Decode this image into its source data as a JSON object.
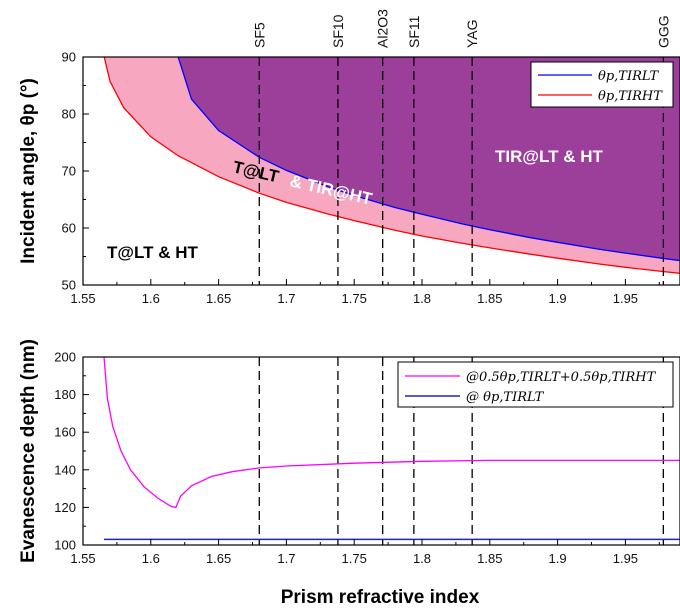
{
  "chart_data": [
    {
      "type": "area",
      "xlabel": "",
      "ylabel": "Incident angle, θp (°)",
      "xlim": [
        1.55,
        2.0
      ],
      "ylim": [
        50,
        90
      ],
      "xticks": [
        "1.55",
        "1.6",
        "1.65",
        "1.7",
        "1.75",
        "1.8",
        "1.85",
        "1.9",
        "1.95",
        "2"
      ],
      "yticks": [
        "50",
        "60",
        "70",
        "80",
        "90"
      ],
      "series": [
        {
          "name": "θp,TIRLT",
          "color": "#0000ff",
          "x": [
            1.6202,
            1.63,
            1.65,
            1.68,
            1.7,
            1.73,
            1.75,
            1.78,
            1.8,
            1.83,
            1.85,
            1.88,
            1.9,
            1.93,
            1.95,
            1.98,
            2.0
          ],
          "y": [
            90.0,
            82.6,
            77.1,
            72.4,
            70.1,
            67.3,
            65.7,
            63.6,
            62.4,
            60.7,
            59.7,
            58.3,
            57.5,
            56.3,
            55.6,
            54.6,
            54.0
          ]
        },
        {
          "name": "θp,TIRHT",
          "color": "#ff0000",
          "x": [
            1.5656,
            1.57,
            1.58,
            1.6,
            1.62,
            1.65,
            1.68,
            1.7,
            1.73,
            1.75,
            1.78,
            1.8,
            1.83,
            1.85,
            1.88,
            1.9,
            1.93,
            1.95,
            1.98,
            2.0
          ],
          "y": [
            90.0,
            85.7,
            81.1,
            76.0,
            72.7,
            69.0,
            66.1,
            64.5,
            62.5,
            61.3,
            59.6,
            58.6,
            57.3,
            56.5,
            55.4,
            54.7,
            53.7,
            53.1,
            52.3,
            51.8
          ]
        }
      ],
      "fills": {
        "TIR@LT & HT": "#9b3f9b",
        "T@LT & TIR@HT": "#f7a8c0",
        "T@LT & HT": "#ffffff"
      },
      "region_labels": [
        "TIR@LT & HT",
        "T@LT",
        " & TIR@HT",
        "T@LT & HT"
      ],
      "materials": [
        {
          "name": "SF5",
          "n": 1.68
        },
        {
          "name": "SF10",
          "n": 1.738
        },
        {
          "name": "Al2O3",
          "n": 1.771
        },
        {
          "name": "SF11",
          "n": 1.794
        },
        {
          "name": "YAG",
          "n": 1.837
        },
        {
          "name": "GGG",
          "n": 1.978
        }
      ],
      "legend": "top-right",
      "grid": false
    },
    {
      "type": "line",
      "xlabel": "Prism refractive index",
      "ylabel": "Evanescence depth (nm)",
      "xlim": [
        1.55,
        2.0
      ],
      "ylim": [
        100,
        200
      ],
      "xticks": [
        "1.55",
        "1.6",
        "1.65",
        "1.7",
        "1.75",
        "1.8",
        "1.85",
        "1.9",
        "1.95",
        "2"
      ],
      "yticks": [
        "100",
        "120",
        "140",
        "160",
        "180",
        "200"
      ],
      "series": [
        {
          "name": "@0.5θp,TIRLT+0.5θp,TIRHT",
          "color": "#ff00ff",
          "x": [
            1.5655,
            1.568,
            1.572,
            1.578,
            1.585,
            1.595,
            1.605,
            1.615,
            1.6185,
            1.622,
            1.63,
            1.645,
            1.66,
            1.68,
            1.7,
            1.75,
            1.8,
            1.85,
            1.9,
            1.95,
            2.0
          ],
          "y": [
            200,
            178,
            163,
            150,
            140,
            131,
            125,
            120.5,
            120,
            126,
            131.5,
            136.5,
            139,
            141,
            142,
            143.5,
            144.5,
            145,
            145,
            145,
            145
          ]
        },
        {
          "name": "@ θp,TIRLT",
          "color": "#2020c8",
          "x": [
            1.5655,
            2.0
          ],
          "y": [
            103,
            103
          ]
        }
      ],
      "legend": "top-right",
      "grid": false
    }
  ]
}
